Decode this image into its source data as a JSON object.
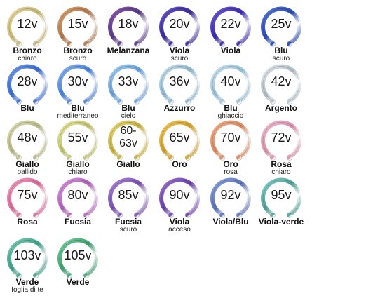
{
  "rings": [
    {
      "voltage": "12v",
      "name": "Bronzo",
      "sub": "chiaro",
      "color": "#c8b878",
      "tint": "#e8d8a0"
    },
    {
      "voltage": "15v",
      "name": "Bronzo",
      "sub": "scuro",
      "color": "#b07a50",
      "tint": "#d8a070"
    },
    {
      "voltage": "18v",
      "name": "Melanzana",
      "sub": "",
      "color": "#5a3a8a",
      "tint": "#8a5ab0"
    },
    {
      "voltage": "20v",
      "name": "Viola",
      "sub": "scuro",
      "color": "#3a2a9a",
      "tint": "#6a58c8"
    },
    {
      "voltage": "22v",
      "name": "Viola",
      "sub": "",
      "color": "#3a2ab0",
      "tint": "#7060d8"
    },
    {
      "voltage": "25v",
      "name": "Blu",
      "sub": "scuro",
      "color": "#2a4ab0",
      "tint": "#5a7ad8"
    },
    {
      "voltage": "28v",
      "name": "Blu",
      "sub": "",
      "color": "#3a6ad0",
      "tint": "#78a0e8"
    },
    {
      "voltage": "30v",
      "name": "Blu",
      "sub": "mediterraneo",
      "color": "#4a80d8",
      "tint": "#90b8f0"
    },
    {
      "voltage": "33v",
      "name": "Blu",
      "sub": "cielo",
      "color": "#6aa0d8",
      "tint": "#a8d0f0"
    },
    {
      "voltage": "36v",
      "name": "Azzurro",
      "sub": "",
      "color": "#90b8d0",
      "tint": "#c8e0ec"
    },
    {
      "voltage": "40v",
      "name": "Blu",
      "sub": "ghiaccio",
      "color": "#98c0d8",
      "tint": "#d0e4f0"
    },
    {
      "voltage": "42v",
      "name": "Argento",
      "sub": "",
      "color": "#b0bcc4",
      "tint": "#e4eaee"
    },
    {
      "voltage": "48v",
      "name": "Giallo",
      "sub": "pallido",
      "color": "#b8b888",
      "tint": "#e0e0b8"
    },
    {
      "voltage": "55v",
      "name": "Giallo",
      "sub": "chiaro",
      "color": "#c0c070",
      "tint": "#e8e8a0"
    },
    {
      "voltage": "60-\n63v",
      "name": "Giallo",
      "sub": "",
      "color": "#c8b040",
      "tint": "#e8d880"
    },
    {
      "voltage": "65v",
      "name": "Oro",
      "sub": "",
      "color": "#d0a030",
      "tint": "#f0c860"
    },
    {
      "voltage": "70v",
      "name": "Oro",
      "sub": "rosa",
      "color": "#d88a60",
      "tint": "#f0b090"
    },
    {
      "voltage": "72v",
      "name": "Rosa",
      "sub": "chiaro",
      "color": "#d890a8",
      "tint": "#f0c0d0"
    },
    {
      "voltage": "75v",
      "name": "Rosa",
      "sub": "",
      "color": "#d86a98",
      "tint": "#f0a0c0"
    },
    {
      "voltage": "80v",
      "name": "Fucsia",
      "sub": "",
      "color": "#b060b8",
      "tint": "#d898e0"
    },
    {
      "voltage": "85v",
      "name": "Fucsia",
      "sub": "scuro",
      "color": "#7a50b0",
      "tint": "#b088d8"
    },
    {
      "voltage": "90v",
      "name": "Viola",
      "sub": "acceso",
      "color": "#6a40a8",
      "tint": "#a078d0"
    },
    {
      "voltage": "92v",
      "name": "Viola/Blu",
      "sub": "",
      "color": "#5a70b8",
      "tint": "#90a8e0"
    },
    {
      "voltage": "95v",
      "name": "Viola-verde",
      "sub": "",
      "color": "#50a098",
      "tint": "#88d0c8"
    },
    {
      "voltage": "103v",
      "name": "Verde",
      "sub": "foglia di te",
      "color": "#40a088",
      "tint": "#80d0b8"
    },
    {
      "voltage": "105v",
      "name": "Verde",
      "sub": "",
      "color": "#40a070",
      "tint": "#78d0a0"
    }
  ]
}
